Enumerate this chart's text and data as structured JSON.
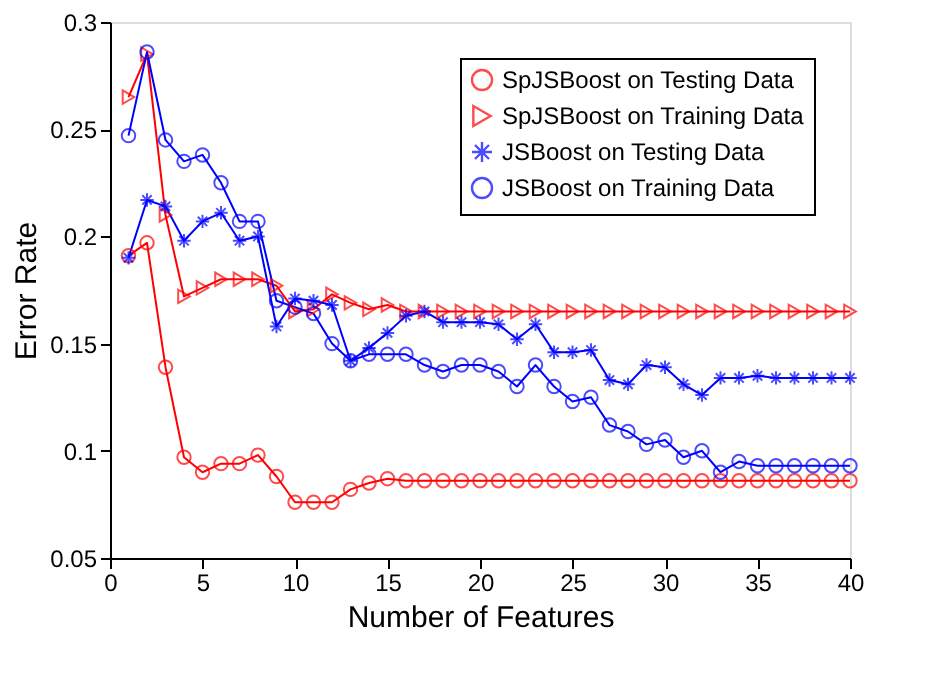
{
  "chart_data": {
    "type": "line",
    "xlabel": "Number of Features",
    "ylabel": "Error Rate",
    "x": [
      1,
      2,
      3,
      4,
      5,
      6,
      7,
      8,
      9,
      10,
      11,
      12,
      13,
      14,
      15,
      16,
      17,
      18,
      19,
      20,
      21,
      22,
      23,
      24,
      25,
      26,
      27,
      28,
      29,
      30,
      31,
      32,
      33,
      34,
      35,
      36,
      37,
      38,
      39,
      40
    ],
    "series": [
      {
        "name": "SpJSBoost on Testing Data",
        "color": "#ff0000",
        "marker": "circle",
        "values": [
          0.191,
          0.197,
          0.139,
          0.097,
          0.09,
          0.094,
          0.094,
          0.098,
          0.088,
          0.076,
          0.076,
          0.076,
          0.082,
          0.085,
          0.087,
          0.086,
          0.086,
          0.086,
          0.086,
          0.086,
          0.086,
          0.086,
          0.086,
          0.086,
          0.086,
          0.086,
          0.086,
          0.086,
          0.086,
          0.086,
          0.086,
          0.086,
          0.086,
          0.086,
          0.086,
          0.086,
          0.086,
          0.086,
          0.086,
          0.086
        ]
      },
      {
        "name": "SpJSBoost on Training Data",
        "color": "#ff0000",
        "marker": "triangle",
        "values": [
          0.265,
          0.285,
          0.21,
          0.172,
          0.176,
          0.18,
          0.18,
          0.18,
          0.177,
          0.165,
          0.166,
          0.173,
          0.169,
          0.166,
          0.168,
          0.165,
          0.165,
          0.165,
          0.165,
          0.165,
          0.165,
          0.165,
          0.165,
          0.165,
          0.165,
          0.165,
          0.165,
          0.165,
          0.165,
          0.165,
          0.165,
          0.165,
          0.165,
          0.165,
          0.165,
          0.165,
          0.165,
          0.165,
          0.165,
          0.165
        ]
      },
      {
        "name": "JSBoost on Testing Data",
        "color": "#0000ff",
        "marker": "cross",
        "values": [
          0.19,
          0.217,
          0.214,
          0.198,
          0.207,
          0.211,
          0.198,
          0.2,
          0.158,
          0.171,
          0.17,
          0.168,
          0.142,
          0.148,
          0.155,
          0.163,
          0.165,
          0.16,
          0.16,
          0.16,
          0.159,
          0.152,
          0.159,
          0.146,
          0.146,
          0.147,
          0.133,
          0.131,
          0.14,
          0.139,
          0.131,
          0.126,
          0.134,
          0.134,
          0.135,
          0.134,
          0.134,
          0.134,
          0.134,
          0.134
        ]
      },
      {
        "name": "JSBoost on Training Data",
        "color": "#0000ff",
        "marker": "circle",
        "values": [
          0.247,
          0.286,
          0.245,
          0.235,
          0.238,
          0.225,
          0.207,
          0.207,
          0.17,
          0.167,
          0.164,
          0.15,
          0.142,
          0.145,
          0.145,
          0.145,
          0.14,
          0.137,
          0.14,
          0.14,
          0.137,
          0.13,
          0.14,
          0.13,
          0.123,
          0.125,
          0.112,
          0.109,
          0.103,
          0.105,
          0.097,
          0.1,
          0.09,
          0.095,
          0.093,
          0.093,
          0.093,
          0.093,
          0.093,
          0.093
        ]
      }
    ],
    "xlim": [
      0,
      40
    ],
    "xticks": [
      0,
      5,
      10,
      15,
      20,
      25,
      30,
      35,
      40
    ],
    "ylim": [
      0.05,
      0.3
    ],
    "yticks": [
      0.05,
      0.1,
      0.15,
      0.2,
      0.25,
      0.3
    ],
    "legend": "top right",
    "grid": false,
    "line_style": "solid"
  }
}
